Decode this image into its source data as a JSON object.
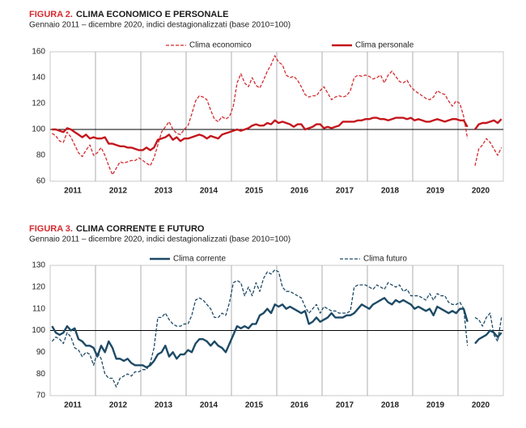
{
  "chart_data": [
    {
      "type": "line",
      "figure_label": "FIGURA 2.",
      "title": "CLIMA ECONOMICO E PERSONALE",
      "subtitle": "Gennaio 2011 – dicembre  2020, indici destagionalizzati (base 2010=100)",
      "categories": [
        "2011",
        "2012",
        "2013",
        "2014",
        "2015",
        "2016",
        "2017",
        "2018",
        "2019",
        "2020"
      ],
      "ylim": [
        60,
        160
      ],
      "yticks": [
        60,
        80,
        100,
        120,
        140,
        160
      ],
      "reference_line": 100,
      "grid": "x",
      "series": [
        {
          "name": "Clima economico",
          "color": "#d42a2f",
          "line_style": "dashed",
          "values": [
            [
              97,
              95,
              91,
              90,
              98,
              94,
              88,
              82,
              79,
              84,
              88,
              80
            ],
            [
              82,
              86,
              80,
              72,
              65,
              70,
              75,
              74,
              75,
              76,
              76,
              78
            ],
            [
              76,
              74,
              72,
              78,
              88,
              98,
              102,
              106,
              100,
              97,
              96,
              100
            ],
            [
              103,
              112,
              122,
              126,
              125,
              123,
              115,
              108,
              106,
              110,
              108,
              110
            ],
            [
              118,
              136,
              143,
              136,
              133,
              140,
              134,
              132,
              138,
              145,
              150,
              157
            ],
            [
              152,
              150,
              142,
              140,
              141,
              138,
              133,
              127,
              125,
              126,
              126,
              130
            ],
            [
              133,
              128,
              123,
              125,
              126,
              125,
              126,
              130,
              140,
              142,
              141,
              142
            ],
            [
              141,
              139,
              140,
              142,
              136,
              142,
              145,
              141,
              137,
              136,
              138,
              133
            ],
            [
              130,
              128,
              126,
              124,
              123,
              125,
              130,
              128,
              127,
              122,
              118,
              122
            ],
            [
              120,
              110,
              93,
              null,
              72,
              85,
              88,
              93,
              90,
              85,
              80,
              86
            ]
          ]
        },
        {
          "name": "Clima personale",
          "color": "#c4161c",
          "line_style": "solid",
          "values": [
            [
              100,
              100,
              99,
              98,
              101,
              100,
              98,
              96,
              94,
              96,
              93,
              94
            ],
            [
              93,
              93,
              94,
              89,
              89,
              88,
              87,
              87,
              86,
              86,
              85,
              84
            ],
            [
              84,
              86,
              84,
              86,
              92,
              93,
              94,
              96,
              92,
              94,
              91,
              93
            ],
            [
              93,
              94,
              95,
              96,
              95,
              93,
              95,
              94,
              93,
              96,
              97,
              98
            ],
            [
              99,
              100,
              99,
              100,
              101,
              103,
              104,
              103,
              103,
              105,
              104,
              107
            ],
            [
              105,
              106,
              105,
              104,
              102,
              104,
              104,
              100,
              101,
              102,
              104,
              104
            ],
            [
              101,
              102,
              101,
              102,
              103,
              106,
              106,
              106,
              106,
              107,
              107,
              108
            ],
            [
              108,
              109,
              109,
              108,
              108,
              107,
              108,
              109,
              109,
              109,
              108,
              109
            ],
            [
              107,
              108,
              107,
              106,
              106,
              107,
              108,
              107,
              106,
              107,
              108,
              108
            ],
            [
              107,
              107,
              102,
              null,
              100,
              104,
              105,
              105,
              106,
              107,
              105,
              108
            ]
          ]
        }
      ]
    },
    {
      "type": "line",
      "figure_label": "FIGURA 3.",
      "title": "CLIMA CORRENTE E FUTURO",
      "subtitle": "Gennaio 2011 – dicembre  2020, indici destagionalizzati (base 2010=100)",
      "categories": [
        "2011",
        "2012",
        "2013",
        "2014",
        "2015",
        "2016",
        "2017",
        "2018",
        "2019",
        "2020"
      ],
      "ylim": [
        70,
        130
      ],
      "yticks": [
        70,
        80,
        90,
        100,
        110,
        120,
        130
      ],
      "reference_line": 100,
      "grid": "x",
      "series": [
        {
          "name": "Clima corrente",
          "color": "#1d4a66",
          "line_style": "solid",
          "values": [
            [
              102,
              99,
              98,
              99,
              102,
              100,
              101,
              96,
              95,
              93,
              93,
              92
            ],
            [
              88,
              93,
              90,
              95,
              92,
              87,
              87,
              86,
              87,
              85,
              84,
              84
            ],
            [
              84,
              83,
              84,
              86,
              89,
              90,
              93,
              88,
              90,
              87,
              89,
              89
            ],
            [
              91,
              90,
              94,
              96,
              96,
              95,
              93,
              95,
              93,
              92,
              90,
              94
            ],
            [
              98,
              102,
              101,
              102,
              101,
              103,
              103,
              107,
              108,
              110,
              108,
              112
            ],
            [
              111,
              112,
              110,
              111,
              110,
              109,
              108,
              109,
              103,
              104,
              106,
              104
            ],
            [
              105,
              106,
              108,
              106,
              106,
              106,
              107,
              107,
              108,
              110,
              112,
              111
            ],
            [
              110,
              112,
              113,
              114,
              115,
              113,
              112,
              114,
              113,
              114,
              113,
              112
            ],
            [
              110,
              111,
              110,
              109,
              110,
              107,
              111,
              110,
              109,
              108,
              109,
              108
            ],
            [
              110,
              110,
              104,
              null,
              94,
              96,
              97,
              98,
              100,
              99,
              97,
              99
            ]
          ]
        },
        {
          "name": "Clima futuro",
          "color": "#1d4a66",
          "line_style": "dashed",
          "values": [
            [
              95,
              97,
              96,
              94,
              99,
              97,
              92,
              91,
              88,
              90,
              89,
              84
            ],
            [
              90,
              87,
              80,
              78,
              78,
              74,
              78,
              79,
              80,
              79,
              81,
              81
            ],
            [
              82,
              82,
              85,
              92,
              106,
              106,
              108,
              105,
              103,
              102,
              102,
              103
            ],
            [
              103,
              107,
              114,
              115,
              114,
              112,
              110,
              106,
              106,
              108,
              107,
              113
            ],
            [
              122,
              123,
              122,
              116,
              120,
              116,
              122,
              118,
              124,
              127,
              126,
              128
            ],
            [
              127,
              120,
              118,
              118,
              117,
              116,
              115,
              111,
              108,
              110,
              112,
              108
            ],
            [
              111,
              110,
              109,
              109,
              108,
              108,
              108,
              109,
              120,
              121,
              121,
              121
            ],
            [
              120,
              119,
              121,
              120,
              119,
              122,
              121,
              120,
              121,
              118,
              119,
              116
            ],
            [
              116,
              116,
              115,
              114,
              117,
              114,
              117,
              116,
              116,
              113,
              112,
              112
            ],
            [
              113,
              110,
              93,
              null,
              106,
              105,
              102,
              106,
              108,
              98,
              95,
              106
            ]
          ]
        }
      ]
    }
  ]
}
